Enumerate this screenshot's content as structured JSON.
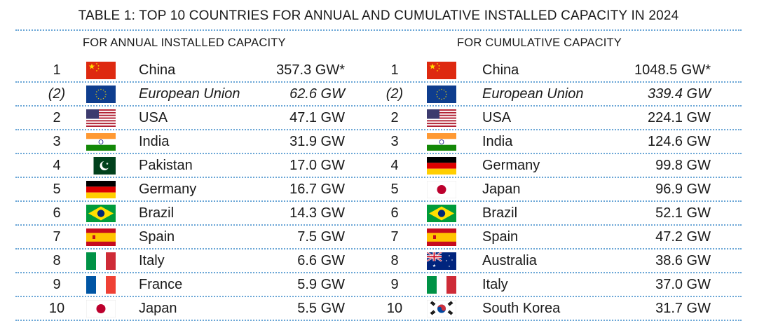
{
  "title": "TABLE 1: TOP 10 COUNTRIES FOR ANNUAL AND CUMULATIVE INSTALLED CAPACITY IN 2024",
  "annual": {
    "heading": "FOR ANNUAL INSTALLED CAPACITY",
    "rows": [
      {
        "rank": "1",
        "flag": "china-flag-icon",
        "name": "China",
        "value": "357.3 GW*"
      },
      {
        "rank": "(2)",
        "flag": "eu-flag-icon",
        "name": "European Union",
        "value": "62.6 GW"
      },
      {
        "rank": "2",
        "flag": "usa-flag-icon",
        "name": "USA",
        "value": "47.1 GW"
      },
      {
        "rank": "3",
        "flag": "india-flag-icon",
        "name": "India",
        "value": "31.9 GW"
      },
      {
        "rank": "4",
        "flag": "pakistan-flag-icon",
        "name": "Pakistan",
        "value": "17.0 GW"
      },
      {
        "rank": "5",
        "flag": "germany-flag-icon",
        "name": "Germany",
        "value": "16.7 GW"
      },
      {
        "rank": "6",
        "flag": "brazil-flag-icon",
        "name": "Brazil",
        "value": "14.3 GW"
      },
      {
        "rank": "7",
        "flag": "spain-flag-icon",
        "name": "Spain",
        "value": "7.5 GW"
      },
      {
        "rank": "8",
        "flag": "italy-flag-icon",
        "name": "Italy",
        "value": "6.6 GW"
      },
      {
        "rank": "9",
        "flag": "france-flag-icon",
        "name": "France",
        "value": "5.9 GW"
      },
      {
        "rank": "10",
        "flag": "japan-flag-icon",
        "name": "Japan",
        "value": "5.5 GW"
      }
    ]
  },
  "cumulative": {
    "heading": "FOR CUMULATIVE CAPACITY",
    "rows": [
      {
        "rank": "1",
        "flag": "china-flag-icon",
        "name": "China",
        "value": "1048.5 GW*"
      },
      {
        "rank": "(2)",
        "flag": "eu-flag-icon",
        "name": "European Union",
        "value": "339.4 GW"
      },
      {
        "rank": "2",
        "flag": "usa-flag-icon",
        "name": "USA",
        "value": "224.1 GW"
      },
      {
        "rank": "3",
        "flag": "india-flag-icon",
        "name": "India",
        "value": "124.6 GW"
      },
      {
        "rank": "4",
        "flag": "germany-flag-icon",
        "name": "Germany",
        "value": "99.8 GW"
      },
      {
        "rank": "5",
        "flag": "japan-flag-icon",
        "name": "Japan",
        "value": "96.9 GW"
      },
      {
        "rank": "6",
        "flag": "brazil-flag-icon",
        "name": "Brazil",
        "value": "52.1 GW"
      },
      {
        "rank": "7",
        "flag": "spain-flag-icon",
        "name": "Spain",
        "value": "47.2 GW"
      },
      {
        "rank": "8",
        "flag": "australia-flag-icon",
        "name": "Australia",
        "value": "38.6 GW"
      },
      {
        "rank": "9",
        "flag": "italy-flag-icon",
        "name": "Italy",
        "value": "37.0 GW"
      },
      {
        "rank": "10",
        "flag": "south-korea-flag-icon",
        "name": "South Korea",
        "value": "31.7 GW"
      }
    ]
  },
  "colors": {
    "divider": "#6aa6d6",
    "text": "#1a1a1a"
  }
}
